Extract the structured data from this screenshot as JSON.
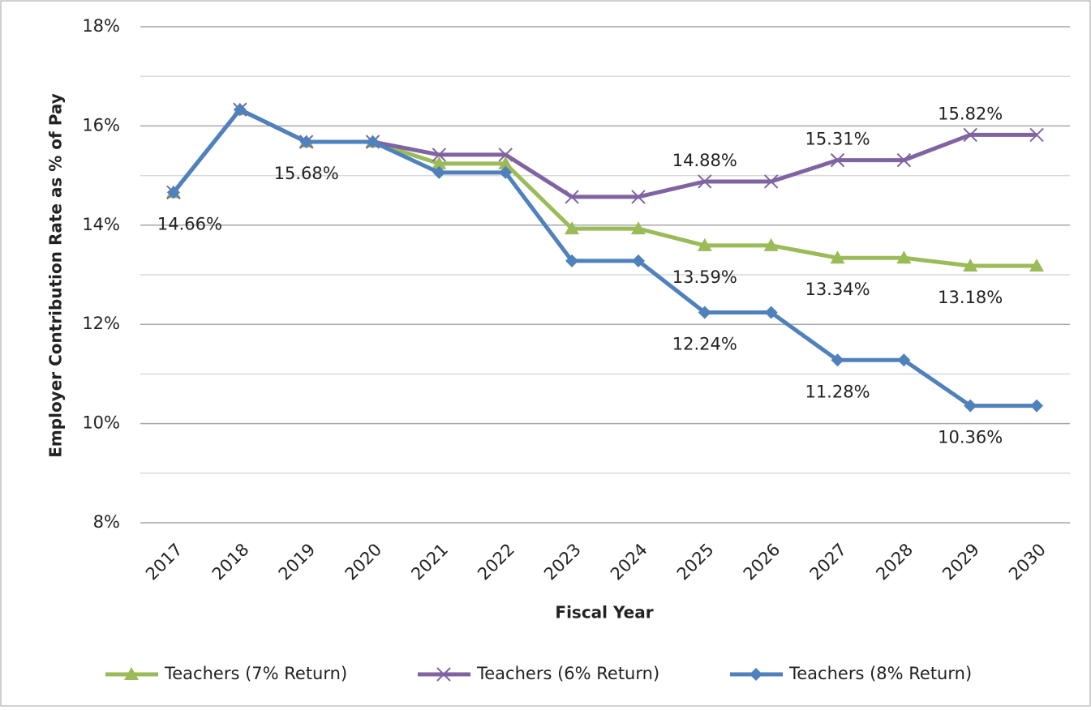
{
  "chart_data": {
    "type": "line",
    "y_axis_label": "Employer Contribution Rate as % of Pay",
    "x_axis_label": "Fiscal Year",
    "categories": [
      "2017",
      "2018",
      "2019",
      "2020",
      "2021",
      "2022",
      "2023",
      "2024",
      "2025",
      "2026",
      "2027",
      "2028",
      "2029",
      "2030"
    ],
    "series": [
      {
        "name": "Teachers (7% Return)",
        "color": "#9bbb59",
        "marker": "triangle",
        "values": [
          14.66,
          16.33,
          15.68,
          15.68,
          15.24,
          15.24,
          13.93,
          13.93,
          13.59,
          13.59,
          13.34,
          13.34,
          13.18,
          13.18
        ],
        "value_labels": [
          "14.66%",
          null,
          "15.68%",
          null,
          null,
          null,
          null,
          null,
          "13.59%",
          null,
          "13.34%",
          null,
          "13.18%",
          null
        ]
      },
      {
        "name": "Teachers (6% Return)",
        "color": "#8064a2",
        "marker": "x",
        "values": [
          14.66,
          16.33,
          15.68,
          15.68,
          15.42,
          15.42,
          14.57,
          14.57,
          14.88,
          14.88,
          15.31,
          15.31,
          15.82,
          15.82
        ],
        "value_labels": [
          null,
          null,
          null,
          null,
          null,
          null,
          null,
          null,
          "14.88%",
          null,
          "15.31%",
          null,
          "15.82%",
          null
        ]
      },
      {
        "name": "Teachers (8% Return)",
        "color": "#4f81bd",
        "marker": "diamond",
        "values": [
          14.66,
          16.33,
          15.68,
          15.68,
          15.06,
          15.06,
          13.28,
          13.28,
          12.24,
          12.24,
          11.28,
          11.28,
          10.36,
          10.36
        ],
        "value_labels": [
          null,
          null,
          null,
          null,
          null,
          null,
          null,
          null,
          "12.24%",
          null,
          "11.28%",
          null,
          "10.36%",
          null
        ]
      }
    ],
    "ylim": [
      8,
      18
    ],
    "yticks": [
      {
        "value": 8,
        "label": "8%"
      },
      {
        "value": 10,
        "label": "10%"
      },
      {
        "value": 12,
        "label": "12%"
      },
      {
        "value": 14,
        "label": "14%"
      },
      {
        "value": 16,
        "label": "16%"
      },
      {
        "value": 18,
        "label": "18%"
      }
    ],
    "minor_yticks": [
      9,
      11,
      13,
      15,
      17
    ],
    "grid": true,
    "legend": "bottom"
  }
}
